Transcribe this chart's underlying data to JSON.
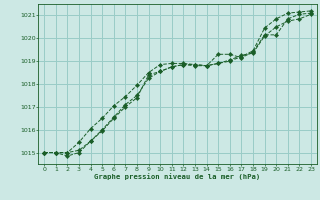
{
  "title": "Graphe pression niveau de la mer (hPa)",
  "bg_color": "#cce8e4",
  "grid_color": "#99ccc7",
  "line_color": "#1a5e28",
  "xlim": [
    -0.5,
    23.5
  ],
  "ylim": [
    1014.5,
    1021.5
  ],
  "yticks": [
    1015,
    1016,
    1017,
    1018,
    1019,
    1020,
    1021
  ],
  "xticks": [
    0,
    1,
    2,
    3,
    4,
    5,
    6,
    7,
    8,
    9,
    10,
    11,
    12,
    13,
    14,
    15,
    16,
    17,
    18,
    19,
    20,
    21,
    22,
    23
  ],
  "line1_x": [
    0,
    1,
    2,
    3,
    4,
    5,
    6,
    7,
    8,
    9,
    10,
    11,
    12,
    13,
    14,
    15,
    16,
    17,
    18,
    19,
    20,
    21,
    22,
    23
  ],
  "line1_y": [
    1015.0,
    1015.0,
    1014.85,
    1015.0,
    1015.5,
    1016.0,
    1016.55,
    1017.1,
    1017.5,
    1018.25,
    1018.55,
    1018.75,
    1018.85,
    1018.8,
    1018.8,
    1018.9,
    1019.05,
    1019.25,
    1019.35,
    1020.1,
    1020.5,
    1020.75,
    1020.85,
    1021.05
  ],
  "line2_x": [
    0,
    1,
    2,
    3,
    4,
    5,
    6,
    7,
    8,
    9,
    10,
    11,
    12,
    13,
    14,
    15,
    16,
    17,
    18,
    19,
    20,
    21,
    22,
    23
  ],
  "line2_y": [
    1015.0,
    1015.0,
    1015.0,
    1015.1,
    1015.5,
    1015.95,
    1016.5,
    1017.0,
    1017.4,
    1018.4,
    1018.55,
    1018.75,
    1018.85,
    1018.85,
    1018.8,
    1019.3,
    1019.3,
    1019.15,
    1019.4,
    1020.15,
    1020.15,
    1020.85,
    1021.05,
    1021.1
  ],
  "line3_x": [
    0,
    1,
    2,
    3,
    4,
    5,
    6,
    7,
    8,
    9,
    10,
    11,
    12,
    13,
    14,
    15,
    16,
    17,
    18,
    19,
    20,
    21,
    22,
    23
  ],
  "line3_y": [
    1015.0,
    1015.0,
    1015.0,
    1015.45,
    1016.05,
    1016.5,
    1017.05,
    1017.45,
    1017.95,
    1018.5,
    1018.85,
    1018.9,
    1018.9,
    1018.85,
    1018.8,
    1018.9,
    1019.0,
    1019.2,
    1019.45,
    1020.45,
    1020.85,
    1021.1,
    1021.15,
    1021.2
  ]
}
